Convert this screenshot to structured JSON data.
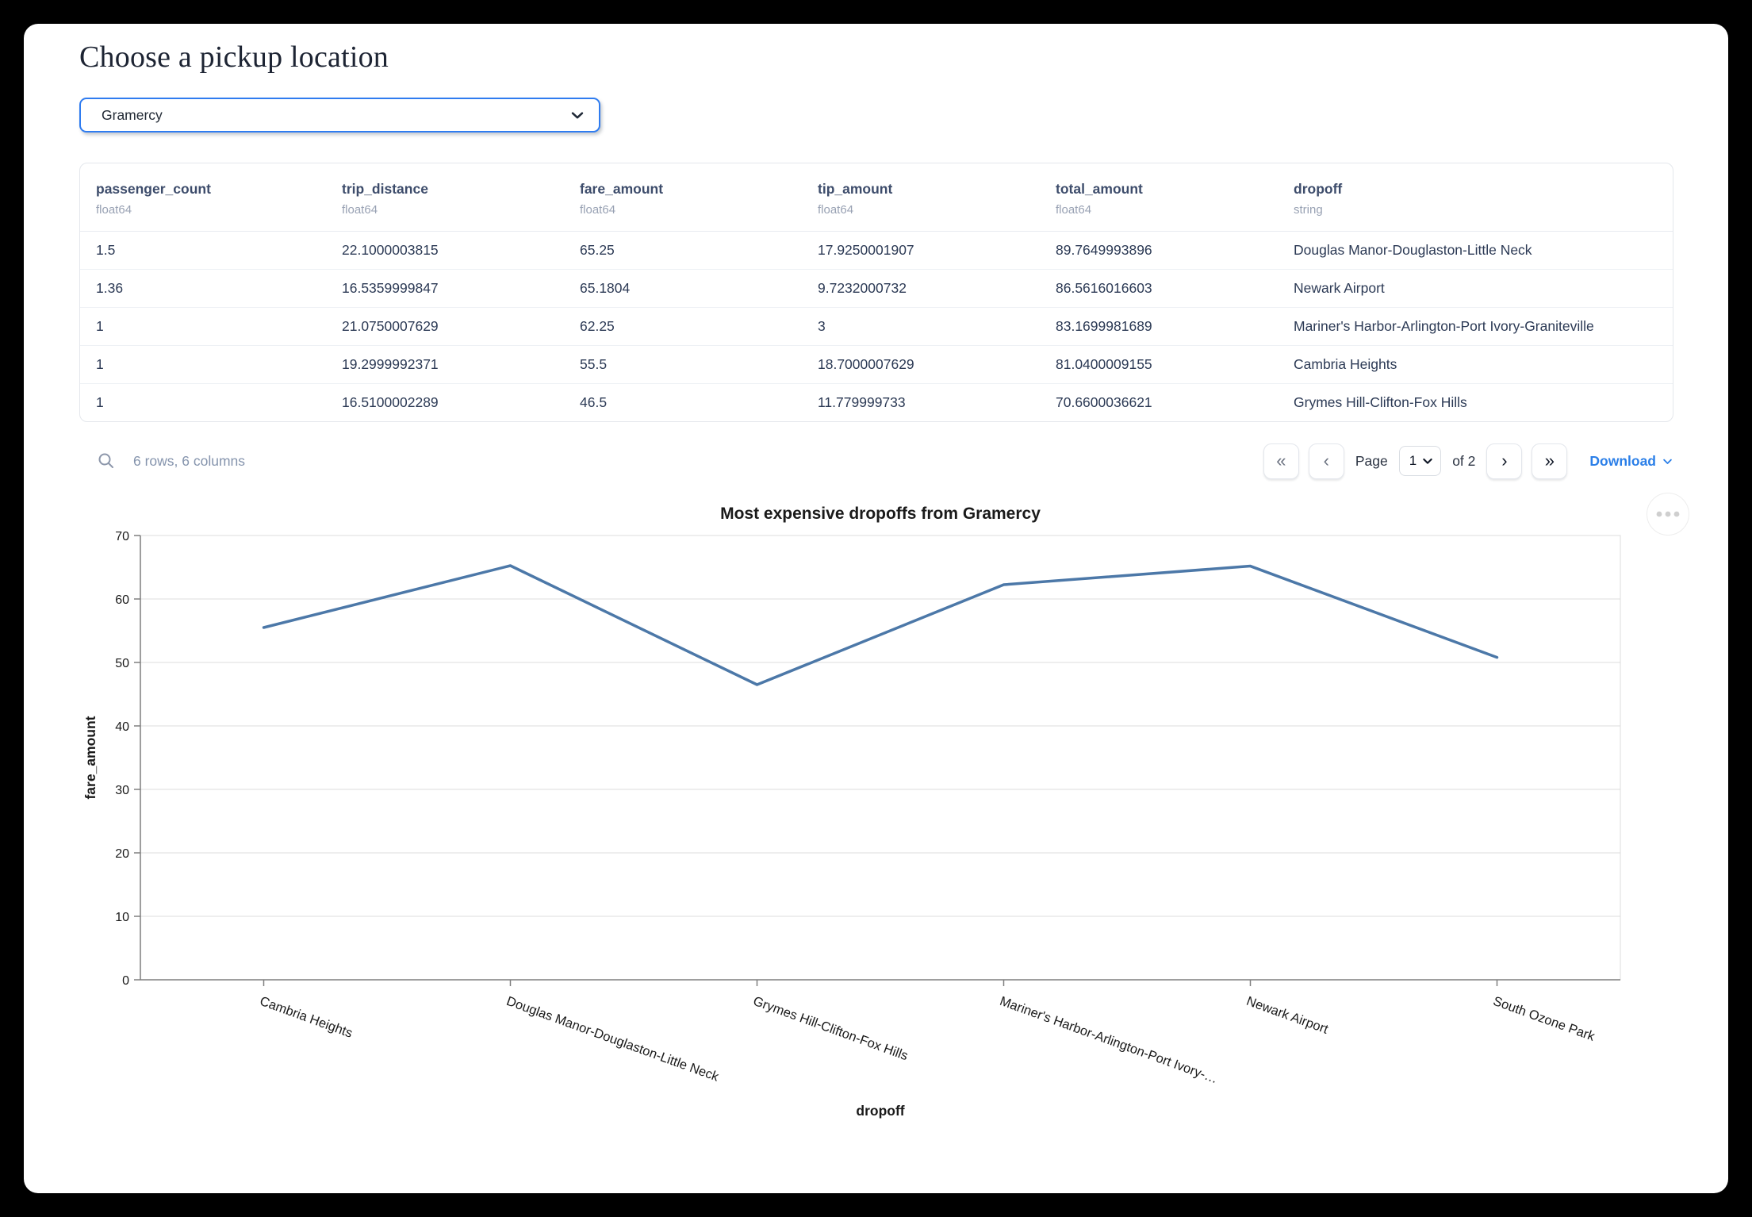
{
  "page": {
    "title": "Choose a pickup location"
  },
  "picker": {
    "value": "Gramercy"
  },
  "table": {
    "columns": [
      {
        "name": "passenger_count",
        "type": "float64"
      },
      {
        "name": "trip_distance",
        "type": "float64"
      },
      {
        "name": "fare_amount",
        "type": "float64"
      },
      {
        "name": "tip_amount",
        "type": "float64"
      },
      {
        "name": "total_amount",
        "type": "float64"
      },
      {
        "name": "dropoff",
        "type": "string"
      }
    ],
    "rows": [
      [
        "1.5",
        "22.1000003815",
        "65.25",
        "17.9250001907",
        "89.7649993896",
        "Douglas Manor-Douglaston-Little Neck"
      ],
      [
        "1.36",
        "16.5359999847",
        "65.1804",
        "9.7232000732",
        "86.5616016603",
        "Newark Airport"
      ],
      [
        "1",
        "21.0750007629",
        "62.25",
        "3",
        "83.1699981689",
        "Mariner's Harbor-Arlington-Port Ivory-Graniteville"
      ],
      [
        "1",
        "19.2999992371",
        "55.5",
        "18.7000007629",
        "81.0400009155",
        "Cambria Heights"
      ],
      [
        "1",
        "16.5100002289",
        "46.5",
        "11.779999733",
        "70.6600036621",
        "Grymes Hill-Clifton-Fox Hills"
      ]
    ],
    "footer": {
      "summary": "6 rows, 6 columns",
      "page_label": "Page",
      "page_value": "1",
      "page_of": "of 2",
      "download_label": "Download",
      "pagination": {
        "first_icon": "«",
        "prev_icon": "‹",
        "next_icon": "›",
        "last_icon": "»"
      }
    }
  },
  "chart_data": {
    "type": "line",
    "title": "Most expensive dropoffs from Gramercy",
    "xlabel": "dropoff",
    "ylabel": "fare_amount",
    "categories": [
      "Cambria Heights",
      "Douglas Manor-Douglaston-Little Neck",
      "Grymes Hill-Clifton-Fox Hills",
      "Mariner's Harbor-Arlington-Port Ivory-…",
      "Newark Airport",
      "South Ozone Park"
    ],
    "values": [
      55.5,
      65.25,
      46.5,
      62.25,
      65.1804,
      50.8
    ],
    "ylim": [
      0,
      70
    ],
    "yticks": [
      0,
      10,
      20,
      30,
      40,
      50,
      60,
      70
    ],
    "grid": true,
    "legend": "none",
    "line_color": "#4c78a8"
  },
  "colors": {
    "accent_blue": "#2f7cf0",
    "link_blue": "#2b7fe8",
    "line_blue": "#4c78a8",
    "header_text": "#3d4c6b"
  }
}
